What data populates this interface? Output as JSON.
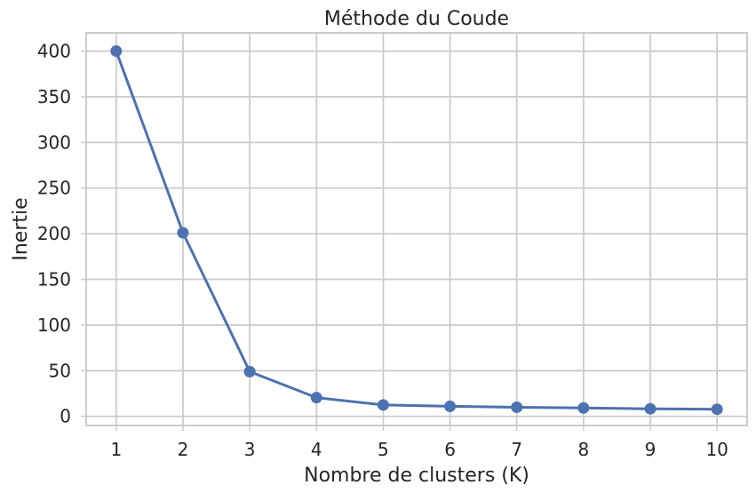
{
  "chart_data": {
    "type": "line",
    "title": "Méthode du Coude",
    "xlabel": "Nombre de clusters (K)",
    "ylabel": "Inertie",
    "x": [
      1,
      2,
      3,
      4,
      5,
      6,
      7,
      8,
      9,
      10
    ],
    "series": [
      {
        "values": [
          400,
          201,
          49,
          20.5,
          12.5,
          11,
          10,
          9.2,
          8.3,
          7.8
        ]
      }
    ],
    "xlim": [
      0.55,
      10.45
    ],
    "ylim": [
      -10,
      420
    ],
    "xticks": [
      "1",
      "2",
      "3",
      "4",
      "5",
      "6",
      "7",
      "8",
      "9",
      "10"
    ],
    "yticks": [
      "0",
      "50",
      "100",
      "150",
      "200",
      "250",
      "300",
      "350",
      "400"
    ],
    "grid": true,
    "colors": {
      "line": "#4c72b0",
      "grid": "#cccccc",
      "text": "#262626"
    }
  }
}
